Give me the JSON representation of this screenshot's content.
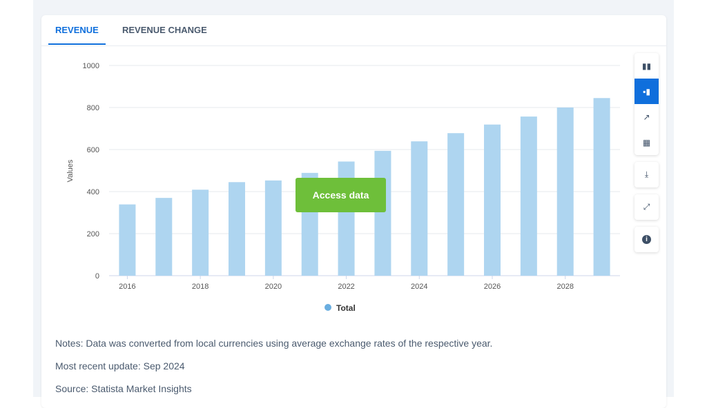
{
  "tabs": [
    {
      "label": "REVENUE",
      "active": true
    },
    {
      "label": "REVENUE CHANGE",
      "active": false
    }
  ],
  "toolbar": {
    "icons": [
      "bar-chart-icon",
      "stacked-bar-icon",
      "line-chart-icon",
      "table-icon",
      "download-icon",
      "fullscreen-icon",
      "info-icon"
    ],
    "active": "stacked-bar-icon",
    "active_color": "#0f6fdc"
  },
  "access_button": {
    "label": "Access data",
    "color": "#6ebf3a"
  },
  "chart_data": {
    "type": "bar",
    "categories": [
      "2016",
      "2017",
      "2018",
      "2019",
      "2020",
      "2021",
      "2022",
      "2023",
      "2024",
      "2025",
      "2026",
      "2027",
      "2028",
      "2029"
    ],
    "series": [
      {
        "name": "Total",
        "values": [
          339,
          370,
          409,
          445,
          453,
          489,
          543,
          594,
          639,
          678,
          719,
          757,
          800,
          845
        ],
        "color": "#aed5f0"
      }
    ],
    "x_tick_labels": [
      "2016",
      "2018",
      "2020",
      "2022",
      "2024",
      "2026",
      "2028"
    ],
    "y_ticks": [
      0,
      200,
      400,
      600,
      800,
      1000
    ],
    "ylim": [
      0,
      1000
    ],
    "ylabel": "Values",
    "grid": true,
    "legend": "bottom"
  },
  "notes": {
    "notes": "Notes: Data was converted from local currencies using average exchange rates of the respective year.",
    "update": "Most recent update: Sep 2024",
    "source": "Source: Statista Market Insights"
  }
}
